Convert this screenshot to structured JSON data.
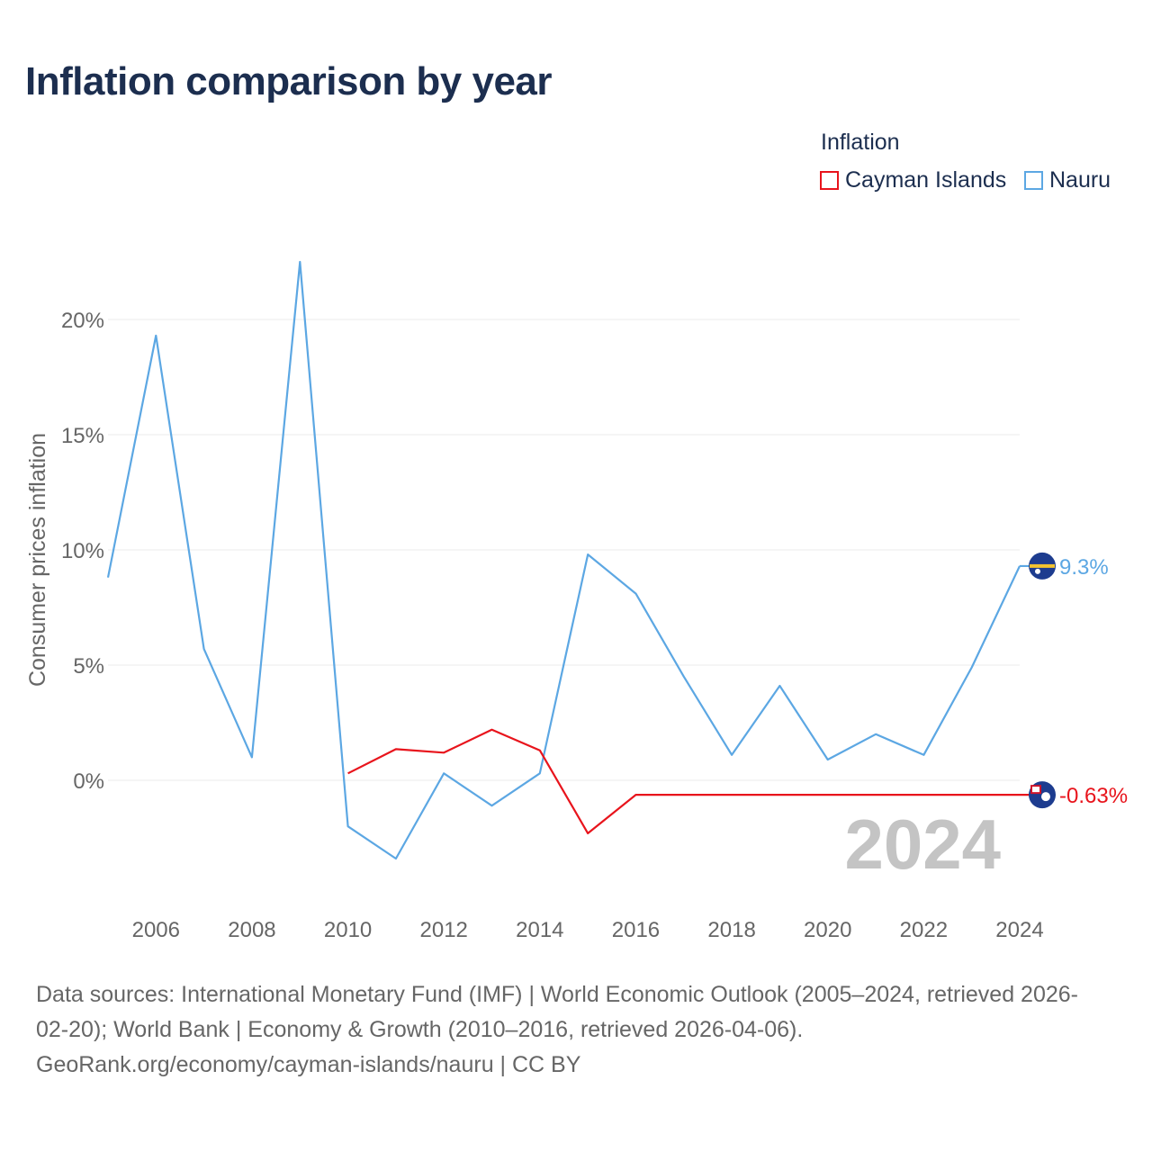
{
  "title": "Inflation comparison by year",
  "legend": {
    "title": "Inflation",
    "items": [
      {
        "label": "Cayman Islands",
        "color": "#e8141c"
      },
      {
        "label": "Nauru",
        "color": "#5ca7e3"
      }
    ]
  },
  "source_lines": [
    "Data sources: International Monetary Fund (IMF) | World Economic Outlook (2005–2024, retrieved 2026-",
    "02-20); World Bank | Economy & Growth (2010–2016, retrieved 2026-04-06).",
    "GeoRank.org/economy/cayman-islands/nauru | CC BY"
  ],
  "chart_data": {
    "type": "line",
    "title": "Inflation comparison by year",
    "xlabel": "",
    "ylabel": "Consumer prices inflation",
    "xlim": [
      2005,
      2024
    ],
    "ylim": [
      -5,
      25
    ],
    "x_ticks": [
      2006,
      2008,
      2010,
      2012,
      2014,
      2016,
      2018,
      2020,
      2022,
      2024
    ],
    "x_tick_labels": [
      "2006",
      "2008",
      "2010",
      "2012",
      "2014",
      "2016",
      "2018",
      "2020",
      "2022",
      "2024"
    ],
    "y_ticks": [
      0,
      5,
      10,
      15,
      20
    ],
    "y_tick_labels": [
      "0%",
      "5%",
      "10%",
      "15%",
      "20%"
    ],
    "grid": true,
    "year_watermark": "2024",
    "series": [
      {
        "name": "Cayman Islands",
        "color": "#e8141c",
        "end_label": "-0.63%",
        "points": [
          [
            2010,
            0.3
          ],
          [
            2011,
            1.35
          ],
          [
            2012,
            1.2
          ],
          [
            2013,
            2.2
          ],
          [
            2014,
            1.3
          ],
          [
            2015,
            -2.3
          ],
          [
            2016,
            -0.63
          ],
          [
            2017,
            -0.63
          ],
          [
            2018,
            -0.63
          ],
          [
            2019,
            -0.63
          ],
          [
            2020,
            -0.63
          ],
          [
            2021,
            -0.63
          ],
          [
            2022,
            -0.63
          ],
          [
            2023,
            -0.63
          ],
          [
            2024,
            -0.63
          ]
        ]
      },
      {
        "name": "Nauru",
        "color": "#5ca7e3",
        "end_label": "9.3%",
        "points": [
          [
            2005,
            8.8
          ],
          [
            2006,
            19.3
          ],
          [
            2007,
            5.7
          ],
          [
            2008,
            1.0
          ],
          [
            2009,
            22.5
          ],
          [
            2010,
            -2.0
          ],
          [
            2011,
            -3.4
          ],
          [
            2012,
            0.3
          ],
          [
            2013,
            -1.1
          ],
          [
            2014,
            0.3
          ],
          [
            2015,
            9.8
          ],
          [
            2016,
            8.1
          ],
          [
            2017,
            4.5
          ],
          [
            2018,
            1.1
          ],
          [
            2019,
            4.1
          ],
          [
            2020,
            0.9
          ],
          [
            2021,
            2.0
          ],
          [
            2022,
            1.1
          ],
          [
            2023,
            4.9
          ],
          [
            2024,
            9.3
          ]
        ]
      }
    ]
  }
}
